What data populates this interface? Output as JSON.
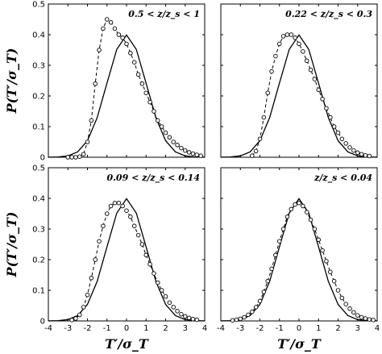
{
  "chart_data": {
    "type": "line",
    "ylabel": "P(T′/σ_T)",
    "xlabel": "T′/σ_T",
    "xlim": [
      -4,
      4
    ],
    "ylim": [
      0,
      0.5
    ],
    "xticks": [
      "-4",
      "-3",
      "-2",
      "-1",
      "0",
      "1",
      "2",
      "3",
      "4"
    ],
    "yticks": [
      "0",
      "0.1",
      "0.2",
      "0.3",
      "0.4",
      "0.5"
    ],
    "grid": false,
    "panels": [
      {
        "label": "0.5 < z/z_s < 1",
        "series": [
          {
            "style": "solid",
            "x": [
              -4,
              -3.5,
              -3,
              -2.5,
              -2,
              -1.5,
              -1,
              -0.5,
              0,
              0.5,
              1,
              1.5,
              2,
              2.5,
              3,
              3.5,
              4
            ],
            "y": [
              0.0001,
              0.0009,
              0.0044,
              0.0175,
              0.054,
              0.1295,
              0.242,
              0.352,
              0.399,
              0.352,
              0.242,
              0.1295,
              0.054,
              0.0175,
              0.0044,
              0.0009,
              0.0001
            ]
          },
          {
            "style": "dashed-markers",
            "x": [
              -3.0,
              -2.8,
              -2.6,
              -2.4,
              -2.2,
              -2.0,
              -1.8,
              -1.6,
              -1.4,
              -1.2,
              -1.0,
              -0.8,
              -0.6,
              -0.4,
              -0.2,
              0.0,
              0.2,
              0.4,
              0.6,
              0.8,
              1.0,
              1.2,
              1.4,
              1.6,
              1.8,
              2.0,
              2.2,
              2.4,
              2.6,
              2.8,
              3.0,
              3.2,
              3.4,
              3.6,
              3.8
            ],
            "y": [
              0.0,
              0.0,
              0.0,
              0.002,
              0.01,
              0.05,
              0.12,
              0.24,
              0.35,
              0.42,
              0.45,
              0.44,
              0.42,
              0.4,
              0.39,
              0.37,
              0.34,
              0.31,
              0.27,
              0.24,
              0.21,
              0.18,
              0.15,
              0.12,
              0.1,
              0.08,
              0.065,
              0.05,
              0.04,
              0.03,
              0.022,
              0.016,
              0.012,
              0.008,
              0.005
            ]
          }
        ]
      },
      {
        "label": "0.22 < z/z_s < 0.3",
        "series": [
          {
            "style": "solid",
            "x": [
              -4,
              -3.5,
              -3,
              -2.5,
              -2,
              -1.5,
              -1,
              -0.5,
              0,
              0.5,
              1,
              1.5,
              2,
              2.5,
              3,
              3.5,
              4
            ],
            "y": [
              0.0001,
              0.0009,
              0.0044,
              0.0175,
              0.054,
              0.1295,
              0.242,
              0.352,
              0.399,
              0.352,
              0.242,
              0.1295,
              0.054,
              0.0175,
              0.0044,
              0.0009,
              0.0001
            ]
          },
          {
            "style": "dashed-markers",
            "x": [
              -2.4,
              -2.2,
              -2.0,
              -1.8,
              -1.6,
              -1.4,
              -1.2,
              -1.0,
              -0.8,
              -0.6,
              -0.4,
              -0.2,
              0.0,
              0.2,
              0.4,
              0.6,
              0.8,
              1.0,
              1.2,
              1.4,
              1.6,
              1.8,
              2.0,
              2.2,
              2.4,
              2.6,
              2.8,
              3.0,
              3.2,
              3.4,
              3.6
            ],
            "y": [
              0.005,
              0.02,
              0.06,
              0.13,
              0.21,
              0.28,
              0.33,
              0.37,
              0.395,
              0.4,
              0.4,
              0.39,
              0.37,
              0.345,
              0.315,
              0.285,
              0.255,
              0.22,
              0.19,
              0.16,
              0.13,
              0.1,
              0.08,
              0.06,
              0.045,
              0.032,
              0.022,
              0.015,
              0.01,
              0.006,
              0.004
            ]
          }
        ]
      },
      {
        "label": "0.09 < z/z_s < 0.14",
        "series": [
          {
            "style": "solid",
            "x": [
              -4,
              -3.5,
              -3,
              -2.5,
              -2,
              -1.5,
              -1,
              -0.5,
              0,
              0.5,
              1,
              1.5,
              2,
              2.5,
              3,
              3.5,
              4
            ],
            "y": [
              0.0001,
              0.0009,
              0.0044,
              0.0175,
              0.054,
              0.1295,
              0.242,
              0.352,
              0.399,
              0.352,
              0.242,
              0.1295,
              0.054,
              0.0175,
              0.0044,
              0.0009,
              0.0001
            ]
          },
          {
            "style": "dashed-markers",
            "x": [
              -2.8,
              -2.6,
              -2.4,
              -2.2,
              -2.0,
              -1.8,
              -1.6,
              -1.4,
              -1.2,
              -1.0,
              -0.8,
              -0.6,
              -0.4,
              -0.2,
              0.0,
              0.2,
              0.4,
              0.6,
              0.8,
              1.0,
              1.2,
              1.4,
              1.6,
              1.8,
              2.0,
              2.2,
              2.4,
              2.6,
              2.8,
              3.0,
              3.2,
              3.4,
              3.6
            ],
            "y": [
              0.003,
              0.008,
              0.02,
              0.045,
              0.085,
              0.14,
              0.2,
              0.26,
              0.31,
              0.35,
              0.375,
              0.385,
              0.385,
              0.375,
              0.36,
              0.34,
              0.31,
              0.28,
              0.25,
              0.215,
              0.185,
              0.155,
              0.125,
              0.1,
              0.08,
              0.06,
              0.045,
              0.032,
              0.022,
              0.015,
              0.01,
              0.006,
              0.004
            ]
          }
        ]
      },
      {
        "label": "z/z_s < 0.04",
        "series": [
          {
            "style": "solid",
            "x": [
              -4,
              -3.5,
              -3,
              -2.5,
              -2,
              -1.5,
              -1,
              -0.5,
              0,
              0.5,
              1,
              1.5,
              2,
              2.5,
              3,
              3.5,
              4
            ],
            "y": [
              0.0001,
              0.0009,
              0.0044,
              0.0175,
              0.054,
              0.1295,
              0.242,
              0.352,
              0.399,
              0.352,
              0.242,
              0.1295,
              0.054,
              0.0175,
              0.0044,
              0.0009,
              0.0001
            ]
          },
          {
            "style": "dashed-markers",
            "x": [
              -3.4,
              -3.2,
              -3.0,
              -2.8,
              -2.6,
              -2.4,
              -2.2,
              -2.0,
              -1.8,
              -1.6,
              -1.4,
              -1.2,
              -1.0,
              -0.8,
              -0.6,
              -0.4,
              -0.2,
              0.0,
              0.2,
              0.4,
              0.6,
              0.8,
              1.0,
              1.2,
              1.4,
              1.6,
              1.8,
              2.0,
              2.2,
              2.4,
              2.6,
              2.8,
              3.0,
              3.2,
              3.4,
              3.6,
              3.8
            ],
            "y": [
              0.002,
              0.004,
              0.007,
              0.012,
              0.02,
              0.03,
              0.045,
              0.065,
              0.095,
              0.13,
              0.17,
              0.215,
              0.26,
              0.3,
              0.34,
              0.365,
              0.38,
              0.385,
              0.375,
              0.355,
              0.33,
              0.3,
              0.265,
              0.23,
              0.195,
              0.16,
              0.13,
              0.1,
              0.075,
              0.055,
              0.04,
              0.028,
              0.018,
              0.012,
              0.008,
              0.005,
              0.003
            ]
          }
        ]
      }
    ]
  }
}
